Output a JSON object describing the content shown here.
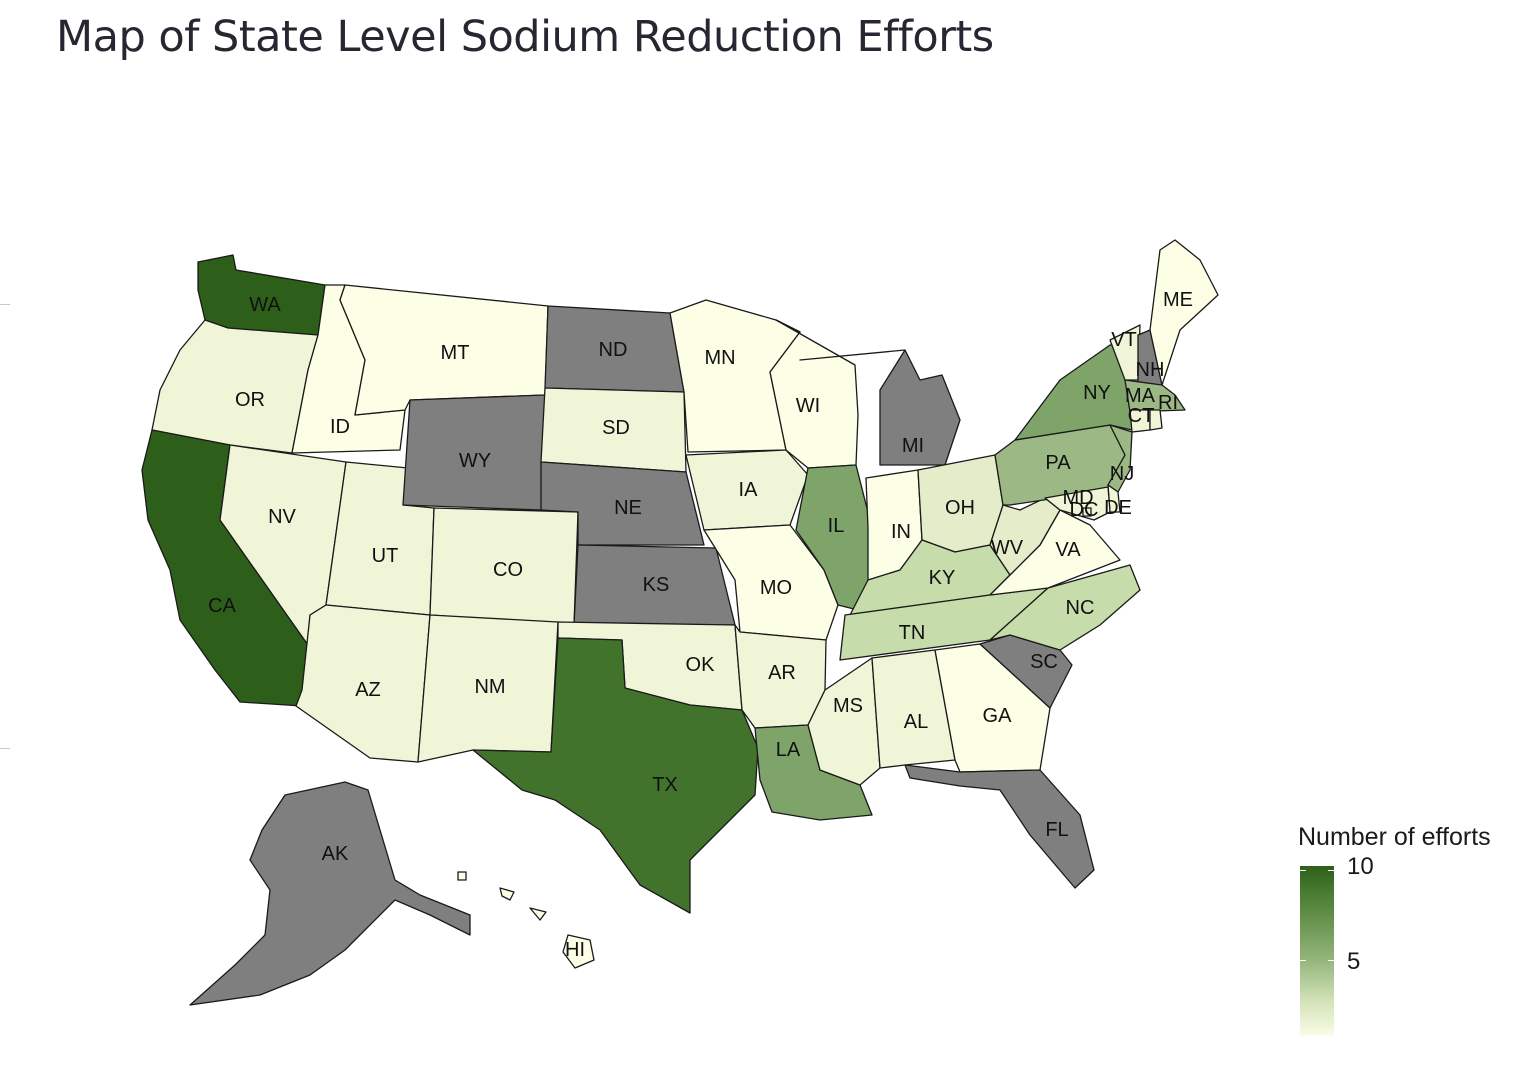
{
  "title": "Map of State Level Sodium Reduction Efforts",
  "legend": {
    "title": "Number of efforts",
    "ticks": [
      "10",
      "5"
    ],
    "color_high": "#2d5f1a",
    "color_low": "#fbfde8",
    "no_data_color": "#7f7f7f"
  },
  "states": [
    {
      "abbr": "WA",
      "efforts": 10
    },
    {
      "abbr": "OR",
      "efforts": 1
    },
    {
      "abbr": "CA",
      "efforts": 10
    },
    {
      "abbr": "ID",
      "efforts": 0
    },
    {
      "abbr": "MT",
      "efforts": 0
    },
    {
      "abbr": "NV",
      "efforts": 1
    },
    {
      "abbr": "UT",
      "efforts": 1
    },
    {
      "abbr": "AZ",
      "efforts": 1
    },
    {
      "abbr": "WY",
      "efforts": null
    },
    {
      "abbr": "CO",
      "efforts": 1
    },
    {
      "abbr": "NM",
      "efforts": 1
    },
    {
      "abbr": "ND",
      "efforts": null
    },
    {
      "abbr": "SD",
      "efforts": 1
    },
    {
      "abbr": "NE",
      "efforts": null
    },
    {
      "abbr": "KS",
      "efforts": null
    },
    {
      "abbr": "OK",
      "efforts": 1
    },
    {
      "abbr": "TX",
      "efforts": 9
    },
    {
      "abbr": "MN",
      "efforts": 0
    },
    {
      "abbr": "IA",
      "efforts": 1
    },
    {
      "abbr": "MO",
      "efforts": 0
    },
    {
      "abbr": "AR",
      "efforts": 1
    },
    {
      "abbr": "LA",
      "efforts": 6
    },
    {
      "abbr": "WI",
      "efforts": 0
    },
    {
      "abbr": "IL",
      "efforts": 6
    },
    {
      "abbr": "MI",
      "efforts": null
    },
    {
      "abbr": "IN",
      "efforts": 0
    },
    {
      "abbr": "OH",
      "efforts": 2
    },
    {
      "abbr": "KY",
      "efforts": 3
    },
    {
      "abbr": "TN",
      "efforts": 3
    },
    {
      "abbr": "MS",
      "efforts": 1
    },
    {
      "abbr": "AL",
      "efforts": 1
    },
    {
      "abbr": "GA",
      "efforts": 0
    },
    {
      "abbr": "FL",
      "efforts": null
    },
    {
      "abbr": "SC",
      "efforts": null
    },
    {
      "abbr": "NC",
      "efforts": 3
    },
    {
      "abbr": "VA",
      "efforts": 0
    },
    {
      "abbr": "WV",
      "efforts": 2
    },
    {
      "abbr": "PA",
      "efforts": 5
    },
    {
      "abbr": "NY",
      "efforts": 6
    },
    {
      "abbr": "VT",
      "efforts": 1
    },
    {
      "abbr": "NH",
      "efforts": null
    },
    {
      "abbr": "ME",
      "efforts": 0
    },
    {
      "abbr": "MA",
      "efforts": 5
    },
    {
      "abbr": "CT",
      "efforts": 1
    },
    {
      "abbr": "RI",
      "efforts": 1
    },
    {
      "abbr": "NJ",
      "efforts": 5
    },
    {
      "abbr": "DE",
      "efforts": 1
    },
    {
      "abbr": "MD",
      "efforts": 1
    },
    {
      "abbr": "DC",
      "efforts": 1
    },
    {
      "abbr": "AK",
      "efforts": null
    },
    {
      "abbr": "HI",
      "efforts": 0
    }
  ]
}
